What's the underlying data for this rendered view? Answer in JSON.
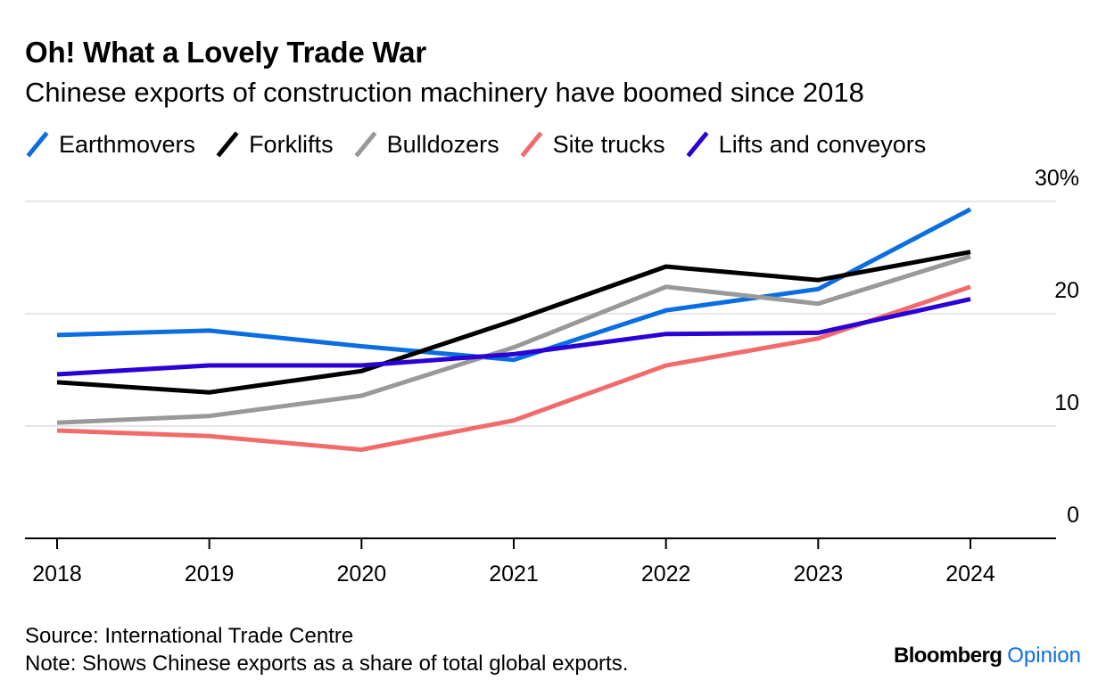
{
  "header": {
    "title": "Oh! What a Lovely Trade War",
    "subtitle": "Chinese exports of construction machinery have boomed since 2018"
  },
  "footer": {
    "source": "Source: International Trade Centre",
    "note": "Note: Shows Chinese exports as a share of total global exports."
  },
  "brand": {
    "name": "Bloomberg",
    "section": "Opinion"
  },
  "chart_data": {
    "type": "line",
    "title": "Oh! What a Lovely Trade War",
    "subtitle": "Chinese exports of construction machinery have boomed since 2018",
    "x": [
      2018,
      2019,
      2020,
      2021,
      2022,
      2023,
      2024
    ],
    "x_tick_labels": [
      "2018",
      "2019",
      "2020",
      "2021",
      "2022",
      "2023",
      "2024"
    ],
    "ylim": [
      0,
      30
    ],
    "y_ticks": [
      0,
      10,
      20,
      30
    ],
    "y_tick_labels": [
      "0",
      "10",
      "20",
      "30%"
    ],
    "y_axis_side": "right",
    "grid": true,
    "legend_position": "top-left",
    "xlabel": "",
    "ylabel": "",
    "series": [
      {
        "name": "Earthmovers",
        "color": "#0b6ee0",
        "values": [
          18.1,
          18.5,
          17.1,
          15.9,
          20.3,
          22.2,
          29.3
        ]
      },
      {
        "name": "Forklifts",
        "color": "#000000",
        "values": [
          13.9,
          13.0,
          14.9,
          19.4,
          24.2,
          23.0,
          25.5
        ]
      },
      {
        "name": "Bulldozers",
        "color": "#999999",
        "values": [
          10.3,
          10.9,
          12.7,
          17.0,
          22.4,
          20.9,
          25.1
        ]
      },
      {
        "name": "Site trucks",
        "color": "#f26b6b",
        "values": [
          9.6,
          9.1,
          7.9,
          10.5,
          15.4,
          17.8,
          22.4
        ]
      },
      {
        "name": "Lifts and conveyors",
        "color": "#2b00d6",
        "values": [
          14.6,
          15.4,
          15.4,
          16.4,
          18.2,
          18.3,
          21.3
        ]
      }
    ]
  }
}
